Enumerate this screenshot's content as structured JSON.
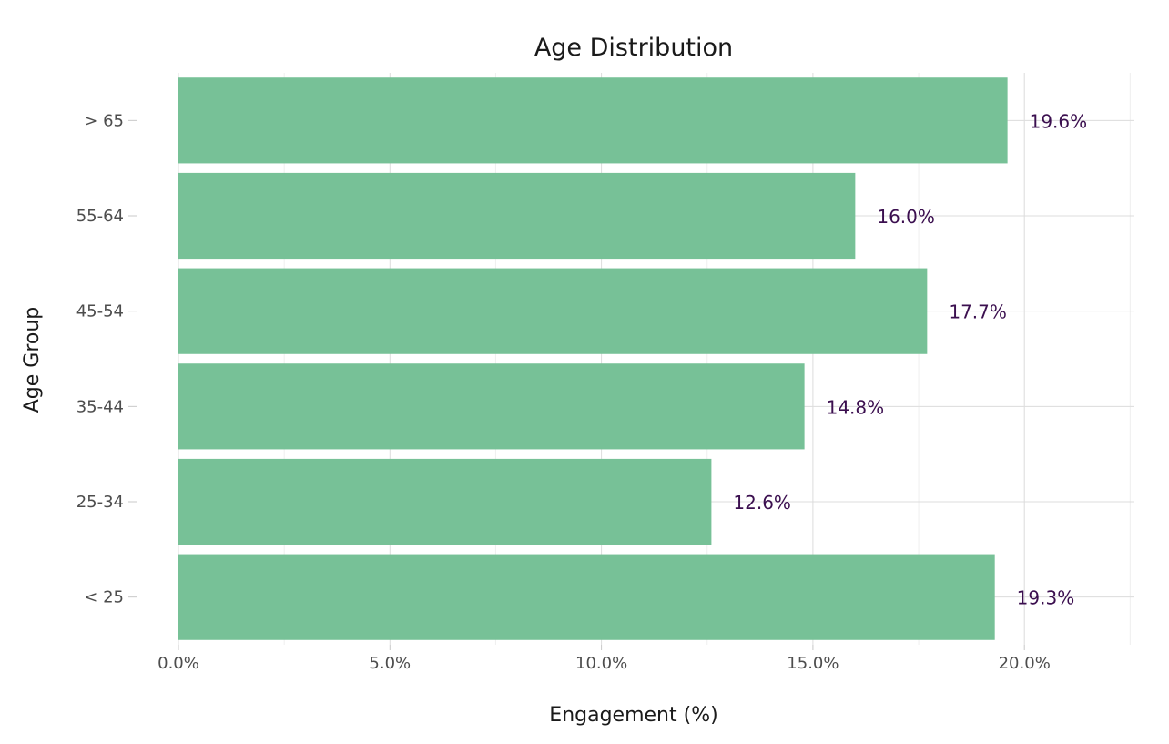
{
  "chart_data": {
    "type": "bar",
    "orientation": "horizontal",
    "title": "Age Distribution",
    "xlabel": "Engagement (%)",
    "ylabel": "Age Group",
    "categories": [
      "< 25",
      "25-34",
      "35-44",
      "45-54",
      "55-64",
      "> 65"
    ],
    "values": [
      19.3,
      12.6,
      14.8,
      17.7,
      16.0,
      19.6
    ],
    "data_labels": [
      "19.3%",
      "12.6%",
      "14.8%",
      "17.7%",
      "16.0%",
      "19.6%"
    ],
    "xlim": [
      0,
      22.6
    ],
    "xticks": [
      0,
      5,
      10,
      15,
      20
    ],
    "xtick_labels": [
      "0.0%",
      "5.0%",
      "10.0%",
      "15.0%",
      "20.0%"
    ],
    "grid": true,
    "legend": "none",
    "bar_color": "#77c197",
    "label_color": "#3b0f4f"
  }
}
